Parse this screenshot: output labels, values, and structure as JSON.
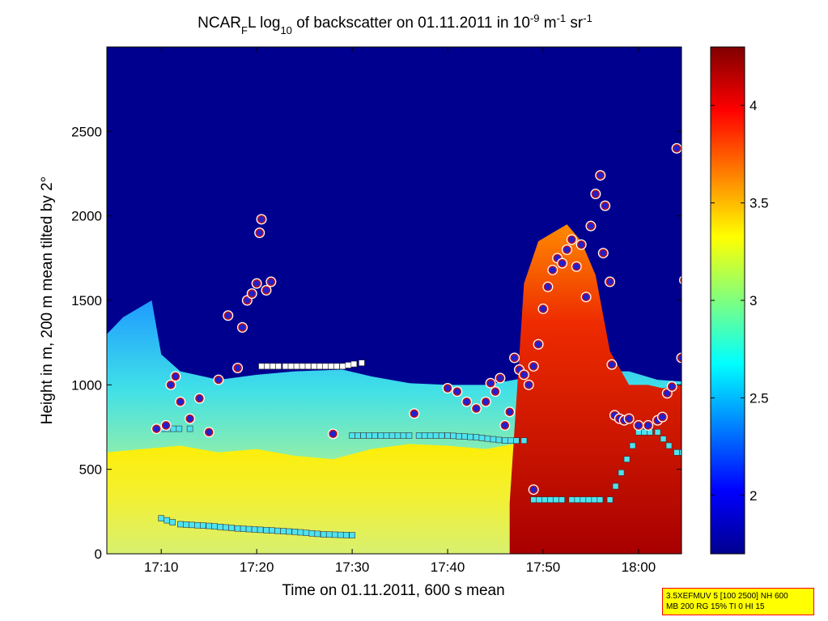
{
  "chart_data": {
    "type": "heatmap",
    "title": "NCAR",
    "title_sub": "F",
    "title_mid": "L log",
    "title_sub2": "10",
    "title_rest": " of backscatter on 01.11.2011 in 10",
    "title_sup1": "-9",
    "title_unit1": " m",
    "title_sup2": "-1",
    "title_unit2": " sr",
    "title_sup3": "-1",
    "xlabel": "Time on 01.11.2011, 600 s mean",
    "ylabel": "Height in m, 200 m mean tilted by 2°",
    "x_tick_labels": [
      "17:10",
      "17:20",
      "17:30",
      "17:40",
      "17:50",
      "18:00"
    ],
    "x_tick_values_min": [
      1030,
      1040,
      1050,
      1060,
      1070,
      1080
    ],
    "xlim_min": [
      1024.3,
      1084.5
    ],
    "y_ticks": [
      0,
      500,
      1000,
      1500,
      2000,
      2500
    ],
    "ylim": [
      0,
      3000
    ],
    "colorbar_ticks": [
      2,
      2.5,
      3,
      3.5,
      4
    ],
    "colorbar_range": [
      1.7,
      4.3
    ],
    "colormap": "jet",
    "layers": {
      "aerosol_top": [
        [
          1024.3,
          1300
        ],
        [
          1026,
          1400
        ],
        [
          1029,
          1500
        ],
        [
          1030,
          1180
        ],
        [
          1032,
          1080
        ],
        [
          1036,
          1030
        ],
        [
          1040,
          1060
        ],
        [
          1044,
          1080
        ],
        [
          1049,
          1090
        ],
        [
          1052,
          1050
        ],
        [
          1056,
          1010
        ],
        [
          1060,
          1000
        ],
        [
          1064,
          1000
        ],
        [
          1068,
          1040
        ],
        [
          1072,
          1050
        ],
        [
          1075,
          1080
        ],
        [
          1079,
          1080
        ],
        [
          1082,
          1030
        ],
        [
          1084.5,
          1020
        ]
      ],
      "boundary_layer": [
        [
          1024.3,
          600
        ],
        [
          1028,
          620
        ],
        [
          1032,
          640
        ],
        [
          1036,
          600
        ],
        [
          1040,
          620
        ],
        [
          1044,
          580
        ],
        [
          1048,
          560
        ],
        [
          1052,
          620
        ],
        [
          1056,
          650
        ],
        [
          1060,
          640
        ],
        [
          1064,
          620
        ],
        [
          1068,
          660
        ],
        [
          1072,
          650
        ],
        [
          1076,
          700
        ],
        [
          1080,
          700
        ],
        [
          1084.5,
          680
        ]
      ],
      "cloud_column": [
        [
          1066.5,
          300
        ],
        [
          1068,
          1600
        ],
        [
          1069.5,
          1850
        ],
        [
          1071,
          1900
        ],
        [
          1072.5,
          1950
        ],
        [
          1074,
          1850
        ],
        [
          1075.5,
          1650
        ],
        [
          1077,
          1200
        ],
        [
          1079,
          1000
        ],
        [
          1081,
          1000
        ],
        [
          1082.5,
          980
        ],
        [
          1084.5,
          1000
        ]
      ]
    },
    "markers_cloud": [
      [
        1029.5,
        740
      ],
      [
        1030.5,
        760
      ],
      [
        1031,
        1000
      ],
      [
        1031.5,
        1050
      ],
      [
        1032,
        900
      ],
      [
        1033,
        800
      ],
      [
        1034,
        920
      ],
      [
        1035,
        720
      ],
      [
        1036,
        1030
      ],
      [
        1037,
        1410
      ],
      [
        1038,
        1100
      ],
      [
        1038.5,
        1340
      ],
      [
        1039,
        1500
      ],
      [
        1039.5,
        1540
      ],
      [
        1040,
        1600
      ],
      [
        1040.3,
        1900
      ],
      [
        1040.5,
        1980
      ],
      [
        1041,
        1560
      ],
      [
        1041.5,
        1610
      ],
      [
        1048,
        710
      ],
      [
        1056.5,
        830
      ],
      [
        1060,
        980
      ],
      [
        1061,
        960
      ],
      [
        1062,
        900
      ],
      [
        1063,
        860
      ],
      [
        1064,
        900
      ],
      [
        1064.5,
        1010
      ],
      [
        1065,
        960
      ],
      [
        1065.5,
        1040
      ],
      [
        1066,
        760
      ],
      [
        1066.5,
        840
      ],
      [
        1067,
        1160
      ],
      [
        1067.5,
        1090
      ],
      [
        1068,
        1060
      ],
      [
        1068.5,
        1000
      ],
      [
        1069,
        1110
      ],
      [
        1069.5,
        1240
      ],
      [
        1070,
        1450
      ],
      [
        1070.5,
        1580
      ],
      [
        1071,
        1680
      ],
      [
        1071.5,
        1750
      ],
      [
        1072,
        1720
      ],
      [
        1072.5,
        1800
      ],
      [
        1073,
        1860
      ],
      [
        1073.5,
        1700
      ],
      [
        1074,
        1830
      ],
      [
        1074.5,
        1520
      ],
      [
        1075,
        1940
      ],
      [
        1075.5,
        2130
      ],
      [
        1076,
        2240
      ],
      [
        1076.3,
        1780
      ],
      [
        1076.5,
        2060
      ],
      [
        1077,
        1610
      ],
      [
        1077.2,
        1120
      ],
      [
        1077.5,
        820
      ],
      [
        1078,
        800
      ],
      [
        1078.5,
        790
      ],
      [
        1079,
        800
      ],
      [
        1080,
        760
      ],
      [
        1081,
        760
      ],
      [
        1082,
        790
      ],
      [
        1082.5,
        810
      ],
      [
        1083,
        950
      ],
      [
        1083.5,
        990
      ],
      [
        1084,
        2400
      ],
      [
        1084.5,
        1160
      ],
      [
        1084.8,
        1620
      ],
      [
        1085,
        1550
      ],
      [
        1085.2,
        1030
      ],
      [
        1086,
        700
      ],
      [
        1087,
        690
      ],
      [
        1069,
        380
      ]
    ],
    "markers_layer_top_white": [
      [
        1040.5,
        1110
      ],
      [
        1043,
        1110
      ],
      [
        1046,
        1110
      ],
      [
        1049,
        1110
      ],
      [
        1051,
        1130
      ]
    ],
    "markers_layer_base_cyan": [
      [
        1029.5,
        740
      ],
      [
        1033,
        740
      ],
      [
        1050,
        700
      ],
      [
        1053,
        700
      ],
      [
        1057,
        700
      ],
      [
        1060,
        700
      ],
      [
        1063,
        690
      ],
      [
        1066,
        670
      ],
      [
        1068,
        670
      ]
    ],
    "markers_low_cyan": [
      [
        1030,
        210
      ],
      [
        1032,
        175
      ],
      [
        1035,
        165
      ],
      [
        1038,
        150
      ],
      [
        1041,
        140
      ],
      [
        1044,
        130
      ],
      [
        1047,
        115
      ],
      [
        1050,
        110
      ],
      [
        1069,
        320
      ],
      [
        1073,
        320
      ],
      [
        1077,
        320
      ],
      [
        1080,
        720
      ],
      [
        1082,
        720
      ],
      [
        1084,
        600
      ],
      [
        1087,
        600
      ]
    ],
    "info_line1": "3.5XEFMUV 5 [100 2500] NH 600",
    "info_line2": "MB 200 RG 15% TI 0 HI 15"
  }
}
